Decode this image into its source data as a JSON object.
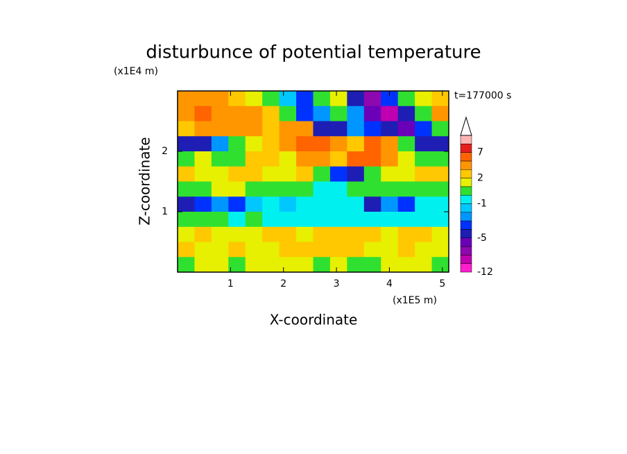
{
  "chart_data": {
    "type": "contour",
    "title": "disturbunce of potential temperature",
    "x_label": "X-coordinate",
    "y_label": "Z-coordinate",
    "x_unit": "(x1E5 m)",
    "y_unit": "(x1E4 m)",
    "annotation": "t=177000 s",
    "xlim": [
      0,
      5.12
    ],
    "ylim": [
      0,
      3
    ],
    "xticks": [
      1,
      2,
      3,
      4,
      5
    ],
    "yticks": [
      1,
      2
    ],
    "x": [
      0.16,
      0.48,
      0.8,
      1.12,
      1.44,
      1.76,
      2.08,
      2.4,
      2.72,
      3.04,
      3.36,
      3.68,
      4.0,
      4.32,
      4.64,
      4.96
    ],
    "y": [
      2.875,
      2.625,
      2.375,
      2.125,
      1.875,
      1.625,
      1.375,
      1.125,
      0.875,
      0.625,
      0.375,
      0.125
    ],
    "z": [
      [
        3,
        4,
        3,
        2,
        1,
        0.5,
        -1.5,
        -3.5,
        0.5,
        1.5,
        -4.5,
        -6.5,
        -3.5,
        0.5,
        1.5,
        2.5
      ],
      [
        4,
        5.5,
        4,
        4,
        3.5,
        2.5,
        0.5,
        -3.5,
        -2.5,
        0.5,
        -2.5,
        -5.5,
        -7.5,
        -4.5,
        0.5,
        3.5
      ],
      [
        2.5,
        4,
        4,
        3.5,
        3.5,
        2.5,
        3.5,
        4,
        -4.5,
        -4.5,
        -2.5,
        -3.5,
        -4.5,
        -5.5,
        -3.5,
        0.5
      ],
      [
        -4.5,
        -4.5,
        -2.5,
        0.5,
        1.5,
        2.5,
        3.5,
        6,
        6,
        4,
        2.5,
        5.5,
        3.5,
        0.5,
        -4.5,
        -4.5
      ],
      [
        0.5,
        1.5,
        0.5,
        0.5,
        2.5,
        2.5,
        1.5,
        3.5,
        4,
        2.5,
        5.5,
        6,
        3.5,
        1.5,
        0.5,
        0.5
      ],
      [
        2.5,
        1.5,
        1.5,
        2.5,
        2.5,
        1.5,
        1.5,
        2.5,
        0.5,
        -3.5,
        -4.5,
        0.5,
        1.5,
        1.5,
        2.5,
        2.5
      ],
      [
        0.5,
        0.5,
        1.5,
        1.5,
        0.5,
        0.5,
        0.5,
        0.5,
        -0.5,
        -0.5,
        0.5,
        0.5,
        0.5,
        0.5,
        0.5,
        0.5
      ],
      [
        -4.5,
        -3.5,
        -2.5,
        -3.5,
        -1.5,
        -0.5,
        -1.5,
        -0.5,
        -0.5,
        -0.5,
        -0.5,
        -4.5,
        -2.5,
        -3.5,
        -0.5,
        -0.5
      ],
      [
        0.5,
        0.5,
        0.5,
        -0.5,
        0.5,
        -0.5,
        -0.5,
        -0.5,
        -0.5,
        -0.5,
        -0.5,
        -0.5,
        -0.5,
        -0.5,
        -0.5,
        -0.5
      ],
      [
        1.5,
        2.5,
        1.5,
        1.5,
        1.5,
        2.5,
        2.5,
        1.5,
        2.5,
        2.5,
        2.5,
        2.5,
        1.5,
        2.5,
        2.5,
        1.5
      ],
      [
        2.5,
        1.5,
        1.5,
        2.5,
        1.5,
        1.5,
        2.5,
        2.5,
        2.5,
        2.5,
        2.5,
        1.5,
        1.5,
        2.5,
        1.5,
        1.5
      ],
      [
        0.5,
        1.5,
        1.5,
        0.5,
        1.5,
        1.5,
        1.5,
        1.5,
        0.5,
        1.5,
        0.5,
        0.5,
        1.5,
        1.5,
        1.5,
        0.5
      ]
    ],
    "levels": [
      -12,
      -9,
      -7,
      -6,
      -5,
      -4,
      -3,
      -2,
      -1,
      0,
      1,
      2,
      3,
      5,
      7,
      9,
      12
    ],
    "colors": [
      "#ff1ecc",
      "#c000b0",
      "#8e08b0",
      "#6a00b8",
      "#1e1eb4",
      "#0032ff",
      "#0096ff",
      "#00c8ff",
      "#00f0f0",
      "#30e030",
      "#e6f000",
      "#ffc800",
      "#ff9600",
      "#ff6400",
      "#e61e1e",
      "#ffb4b4"
    ],
    "level_labels": [
      -12,
      -5,
      -1,
      2,
      7
    ]
  }
}
